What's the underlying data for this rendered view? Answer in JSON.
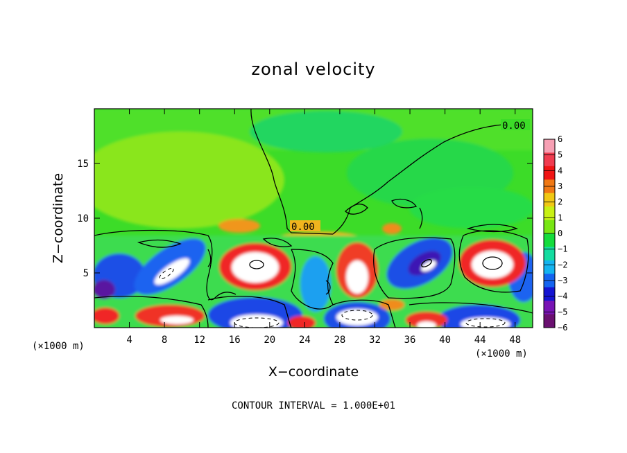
{
  "chart_data": {
    "type": "heatmap",
    "title": "zonal velocity",
    "xlabel": "X−coordinate",
    "ylabel": "Z−coordinate",
    "x_unit": "(×1000 m)",
    "y_unit": "(×1000 m)",
    "xlim": [
      0,
      50
    ],
    "ylim": [
      0,
      20
    ],
    "x_ticks": [
      4,
      8,
      12,
      16,
      20,
      24,
      28,
      32,
      36,
      40,
      44,
      48
    ],
    "y_ticks": [
      5,
      10,
      15
    ],
    "colorbar": {
      "ticks": [
        "6",
        "5",
        "4",
        "3",
        "2",
        "1",
        "0",
        "−1",
        "−2",
        "−3",
        "−4",
        "−5",
        "−6"
      ],
      "colors": [
        "#f7a0b4",
        "#f03c50",
        "#f01414",
        "#f07814",
        "#f0c814",
        "#c8f014",
        "#78e614",
        "#14dc3c",
        "#14dca0",
        "#14b4f0",
        "#1464f0",
        "#1414d2",
        "#7814b4",
        "#6a1070"
      ]
    },
    "contour_label": "0.00",
    "contour_interval_text": "CONTOUR INTERVAL =  1.000E+01"
  }
}
